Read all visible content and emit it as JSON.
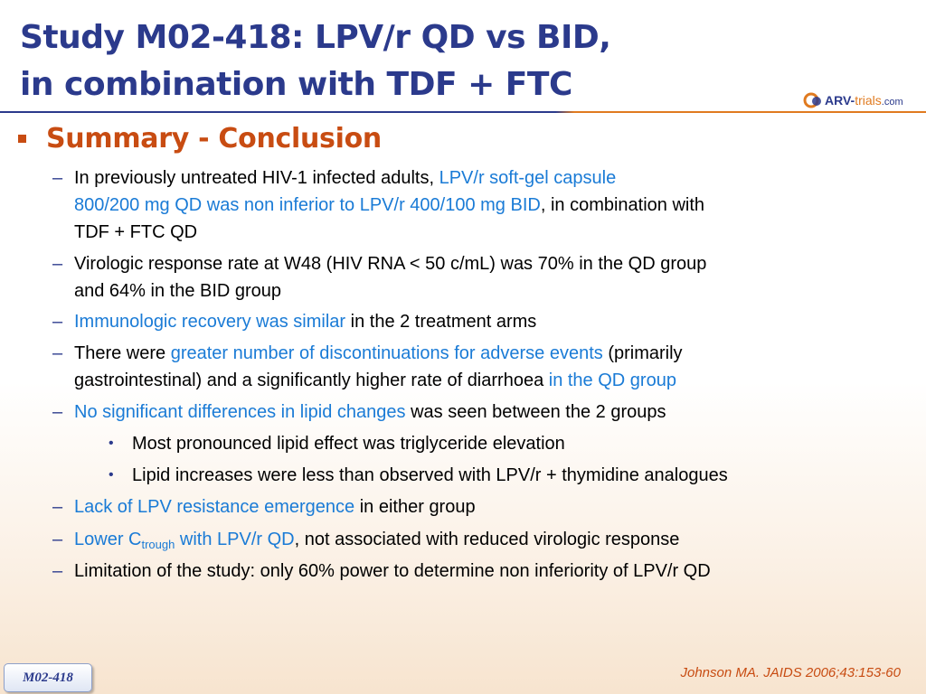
{
  "title": {
    "line1": "Study M02-418: LPV/r QD vs BID,",
    "line2": "in combination with TDF + FTC"
  },
  "logo": {
    "part1": "ARV-",
    "part2": "trials",
    "part3": ".com"
  },
  "heading": "Summary - Conclusion",
  "items": [
    {
      "seg1": "In previously untreated HIV-1 infected adults, ",
      "hl1": "LPV/r soft-gel capsule",
      "hl2": "800/200 mg QD was non inferior to LPV/r 400/100 mg BID",
      "seg2": ", in combination with",
      "seg3": "TDF +  FTC QD"
    },
    {
      "line1": "Virologic response rate at W48 (HIV RNA < 50 c/mL) was 70% in the QD group",
      "line2": "and 64% in the BID group"
    },
    {
      "hl": "Immunologic recovery was similar",
      "rest": " in the 2 treatment arms"
    },
    {
      "seg1": "There were ",
      "hl1": "greater number of discontinuations for adverse events",
      "seg2": " (primarily",
      "seg3": "gastrointestinal) and a significantly higher rate of diarrhoea ",
      "hl2": "in the QD group"
    },
    {
      "hl": "No significant differences in lipid changes",
      "rest": " was seen between the 2 groups"
    },
    {
      "hl": "Lack of LPV resistance emergence",
      "rest": " in either group"
    },
    {
      "hl1": "Lower C",
      "hl_sub": "trough",
      "hl2": " with LPV/r QD",
      "rest": ", not associated with reduced virologic response"
    },
    {
      "text": "Limitation of the study: only 60% power to determine non inferiority of LPV/r QD"
    }
  ],
  "subitems": [
    "Most pronounced lipid effect was triglyceride elevation",
    "Lipid increases were less than observed with LPV/r + thymidine analogues"
  ],
  "bullet_dash": "–",
  "bullet_dot": "•",
  "citation": "Johnson MA. JAIDS 2006;43:153-60",
  "badge": "M02-418",
  "colors": {
    "title": "#2b3a8c",
    "heading": "#c84c12",
    "highlight": "#1a7bd6",
    "citation": "#c84c12"
  }
}
